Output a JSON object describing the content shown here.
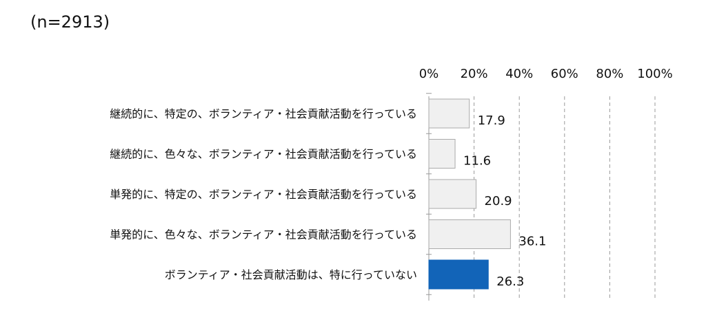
{
  "header": {
    "sample_size": "(n=2913)"
  },
  "chart_data": {
    "type": "bar",
    "orientation": "horizontal",
    "categories": [
      "継続的に、特定の、ボランティア・社会貢献活動を行っている",
      "継続的に、色々な、ボランティア・社会貢献活動を行っている",
      "単発的に、特定の、ボランティア・社会貢献活動を行っている",
      "単発的に、色々な、ボランティア・社会貢献活動を行っている",
      "ボランティア・社会貢献活動は、特に行っていない"
    ],
    "values": [
      17.9,
      11.6,
      20.9,
      36.1,
      26.3
    ],
    "value_labels": [
      "17.9",
      "11.6",
      "20.9",
      "36.1",
      "26.3"
    ],
    "xlim": [
      0,
      100
    ],
    "x_ticks": [
      0,
      20,
      40,
      60,
      80,
      100
    ],
    "x_tick_labels": [
      "0%",
      "20%",
      "40%",
      "60%",
      "80%",
      "100%"
    ],
    "axis_position": "top",
    "grid": "vertical-dashed",
    "colors": {
      "default_bar": "#f0f0f0",
      "default_bar_border": "#aaaaaa",
      "highlight_bar": "#1264b8",
      "grid": "#999999"
    },
    "highlight_index": 4
  }
}
